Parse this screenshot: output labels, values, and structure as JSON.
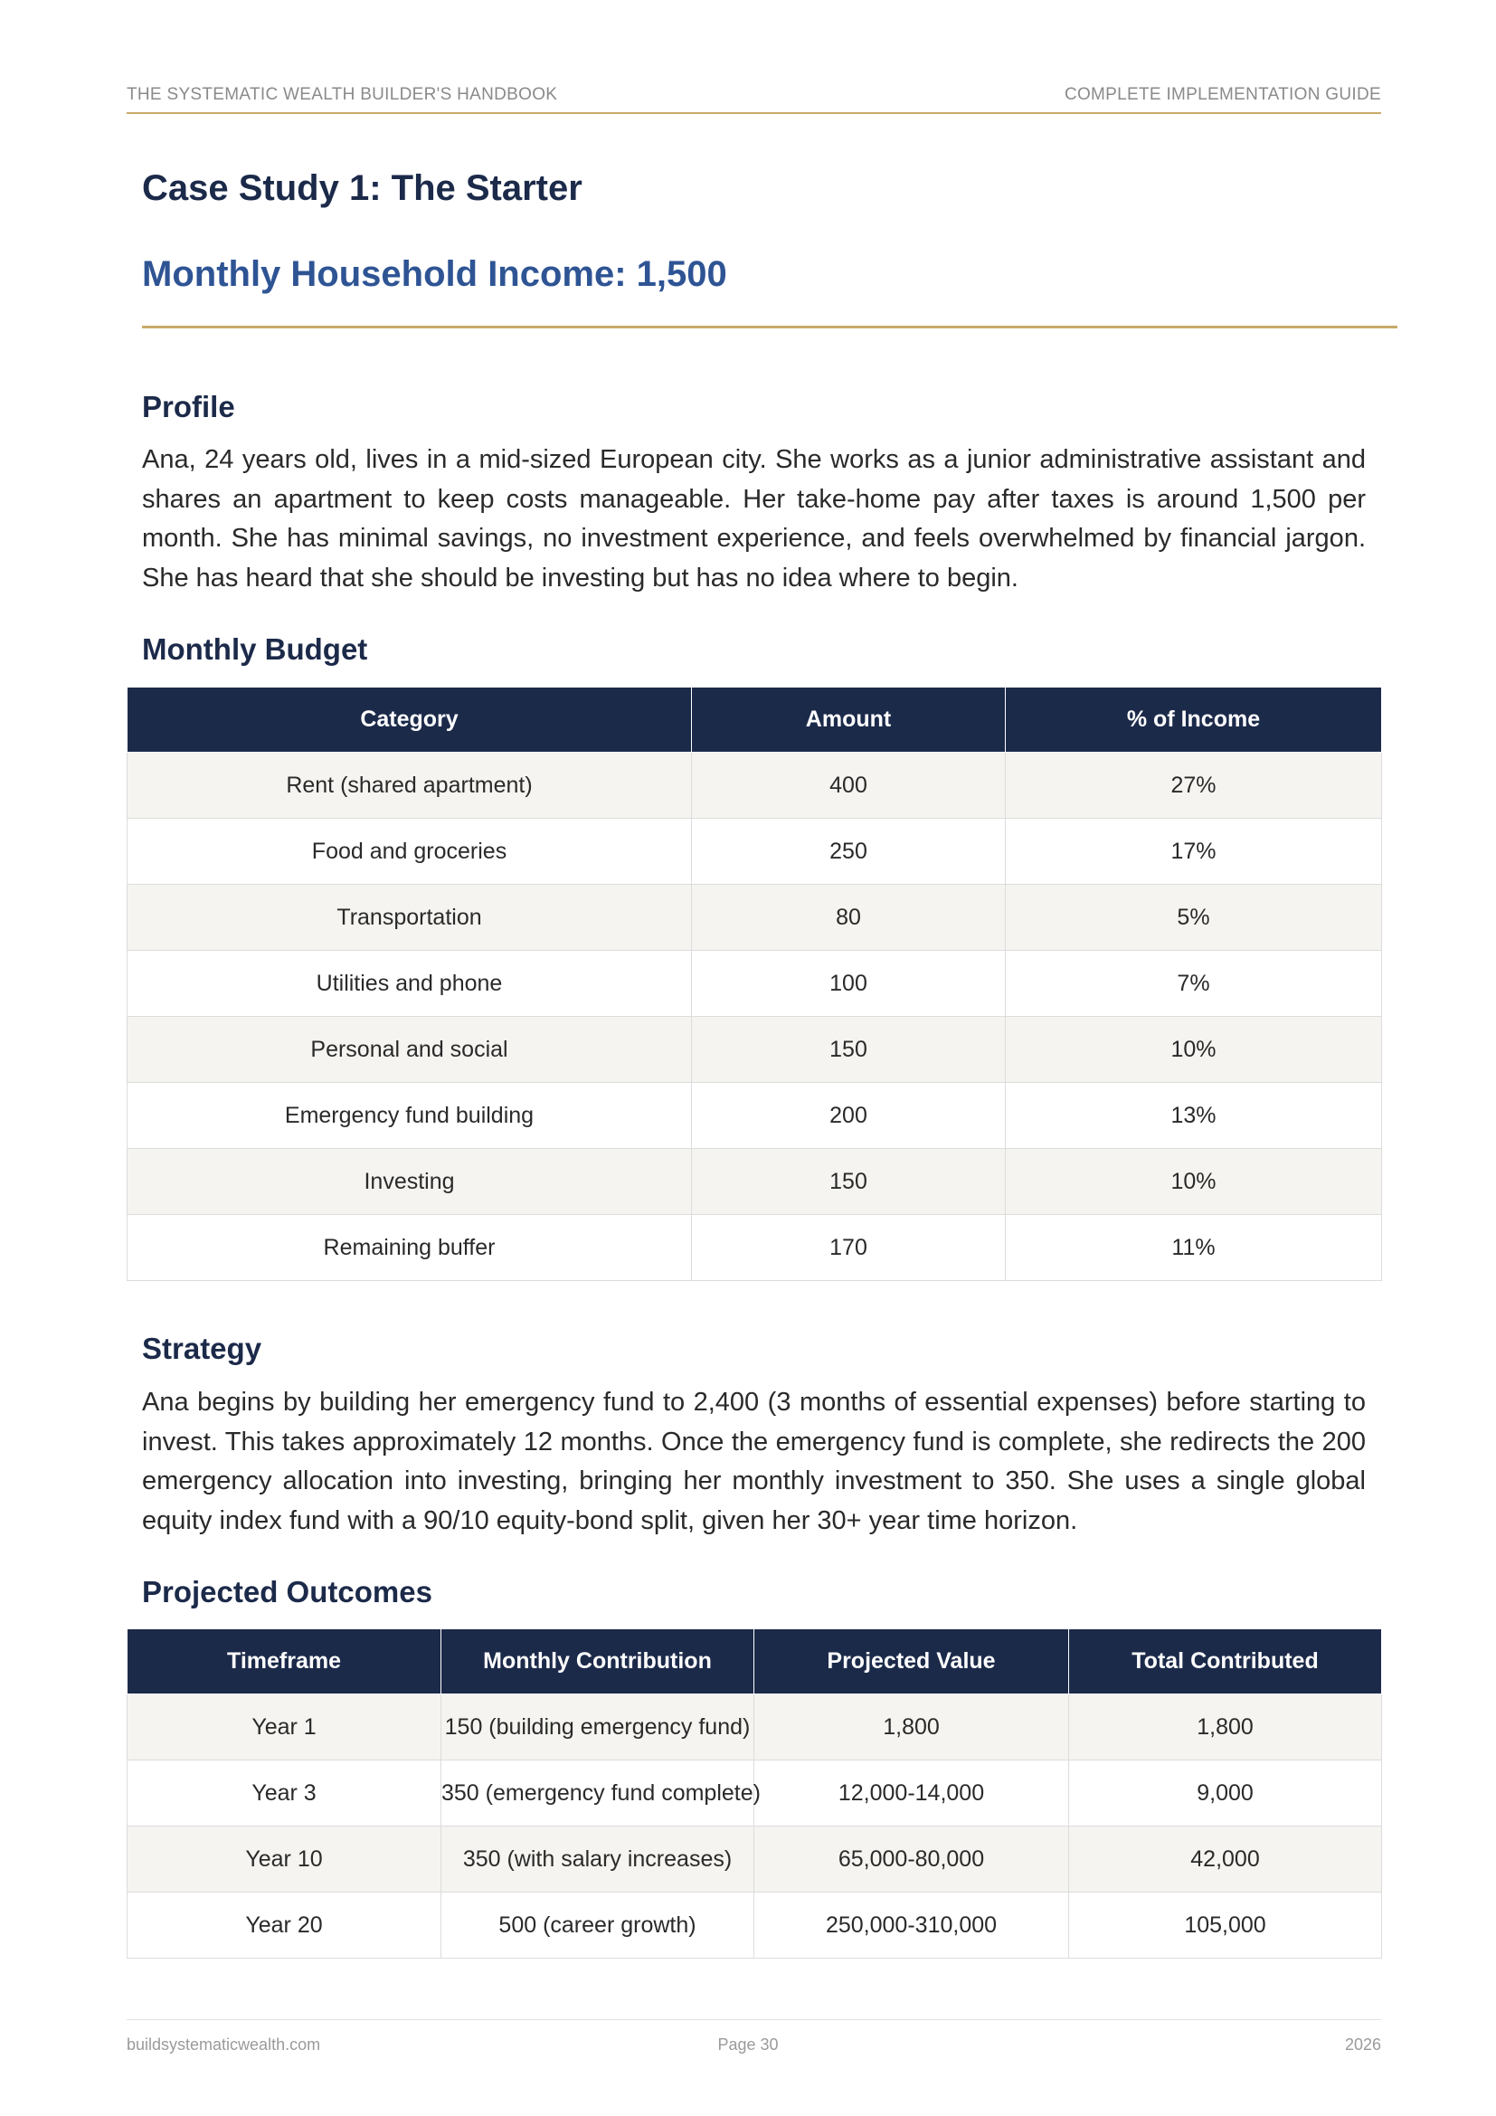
{
  "header": {
    "left": "THE SYSTEMATIC WEALTH BUILDER'S HANDBOOK",
    "right": "COMPLETE IMPLEMENTATION GUIDE"
  },
  "title": "Case Study 1: The Starter",
  "subtitle": "Monthly Household Income: 1,500",
  "profile": {
    "heading": "Profile",
    "text": "Ana, 24 years old, lives in a mid-sized European city. She works as a junior administrative assistant and shares an apartment to keep costs manageable. Her take-home pay after taxes is around 1,500 per month. She has minimal savings, no investment experience, and feels overwhelmed by financial jargon. She has heard that she should be investing but has no idea where to begin."
  },
  "budget": {
    "heading": "Monthly Budget",
    "columns": [
      "Category",
      "Amount",
      "% of Income"
    ],
    "rows": [
      [
        "Rent (shared apartment)",
        "400",
        "27%"
      ],
      [
        "Food and groceries",
        "250",
        "17%"
      ],
      [
        "Transportation",
        "80",
        "5%"
      ],
      [
        "Utilities and phone",
        "100",
        "7%"
      ],
      [
        "Personal and social",
        "150",
        "10%"
      ],
      [
        "Emergency fund building",
        "200",
        "13%"
      ],
      [
        "Investing",
        "150",
        "10%"
      ],
      [
        "Remaining buffer",
        "170",
        "11%"
      ]
    ]
  },
  "strategy": {
    "heading": "Strategy",
    "text": "Ana begins by building her emergency fund to 2,400 (3 months of essential expenses) before starting to invest. This takes approximately 12 months. Once the emergency fund is complete, she redirects the 200 emergency allocation into investing, bringing her monthly investment to 350. She uses a single global equity index fund with a 90/10 equity-bond split, given her 30+ year time horizon."
  },
  "outcomes": {
    "heading": "Projected Outcomes",
    "columns": [
      "Timeframe",
      "Monthly Contribution",
      "Projected Value",
      "Total Contributed"
    ],
    "rows": [
      [
        "Year 1",
        "150 (building emergency fund)",
        "1,800",
        "1,800"
      ],
      [
        "Year 3",
        "350 (emergency fund complete)",
        "12,000-14,000",
        "9,000"
      ],
      [
        "Year 10",
        "350 (with salary increases)",
        "65,000-80,000",
        "42,000"
      ],
      [
        "Year 20",
        "500 (career growth)",
        "250,000-310,000",
        "105,000"
      ]
    ]
  },
  "footer": {
    "left": "buildsystematicwealth.com",
    "center": "Page 30",
    "right": "2026"
  }
}
